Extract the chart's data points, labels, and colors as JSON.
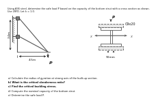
{
  "title_line1": "Using A36 steel, determine the safe load P based on the capacity of the bottom strut with a cross section as shown.",
  "title_line2": "Use LRFD. Let k = 1.0.",
  "section_label": "C9x20",
  "dim_vertical": "3.4m",
  "dim_horizontal": "4.5m",
  "dim_plate": "90mm",
  "load_label": "P",
  "questions": [
    "a) Calculate the radius of gyration at strong axis of the built-up section.",
    "b) What is the critical slenderness ratio?",
    "c) Find the critical buckling stress.",
    "d) Compute the nominal capacity of the bottom strut.",
    "e) Determine the safe load P."
  ],
  "bg_color": "#ffffff",
  "text_color": "#111111",
  "gray_color": "#777777",
  "dark_gray": "#333333",
  "line_color": "#555555"
}
